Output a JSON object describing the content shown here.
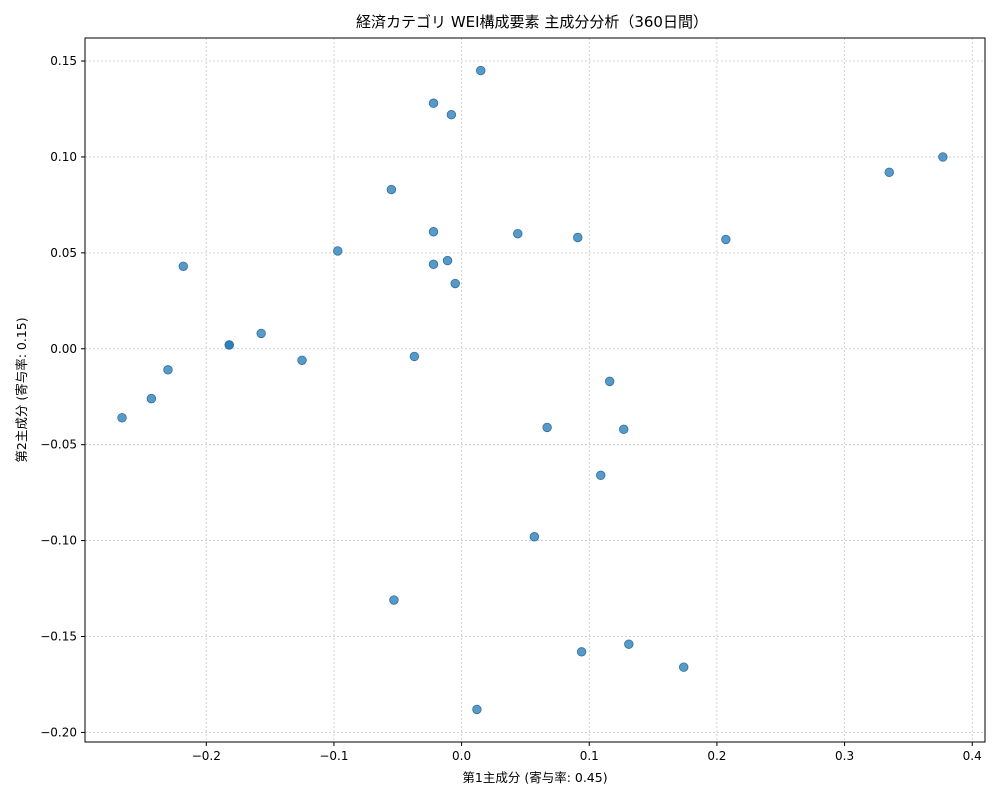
{
  "chart_data": {
    "type": "scatter",
    "title": "経済カテゴリ WEI構成要素 主成分分析（360日間）",
    "xlabel": "第1主成分 (寄与率: 0.45)",
    "ylabel": "第2主成分 (寄与率: 0.15)",
    "xlim": [
      -0.295,
      0.41
    ],
    "ylim": [
      -0.205,
      0.162
    ],
    "xticks": [
      -0.2,
      -0.1,
      0.0,
      0.1,
      0.2,
      0.3,
      0.4
    ],
    "xtick_labels": [
      "−0.2",
      "−0.1",
      "0.0",
      "0.1",
      "0.2",
      "0.3",
      "0.4"
    ],
    "yticks": [
      -0.2,
      -0.15,
      -0.1,
      -0.05,
      0.0,
      0.05,
      0.1,
      0.15
    ],
    "ytick_labels": [
      "−0.20",
      "−0.15",
      "−0.10",
      "−0.05",
      "0.00",
      "0.05",
      "0.10",
      "0.15"
    ],
    "grid": true,
    "point_color": "#1f77b4",
    "points": [
      {
        "x": 0.015,
        "y": 0.145
      },
      {
        "x": -0.022,
        "y": 0.128
      },
      {
        "x": -0.008,
        "y": 0.122
      },
      {
        "x": -0.055,
        "y": 0.083
      },
      {
        "x": -0.022,
        "y": 0.061
      },
      {
        "x": 0.044,
        "y": 0.06
      },
      {
        "x": 0.091,
        "y": 0.058
      },
      {
        "x": 0.207,
        "y": 0.057
      },
      {
        "x": -0.097,
        "y": 0.051
      },
      {
        "x": -0.011,
        "y": 0.046
      },
      {
        "x": -0.022,
        "y": 0.044
      },
      {
        "x": -0.218,
        "y": 0.043
      },
      {
        "x": -0.005,
        "y": 0.034
      },
      {
        "x": 0.335,
        "y": 0.092
      },
      {
        "x": 0.377,
        "y": 0.1
      },
      {
        "x": -0.157,
        "y": 0.008
      },
      {
        "x": -0.182,
        "y": 0.002
      },
      {
        "x": -0.182,
        "y": 0.002
      },
      {
        "x": -0.125,
        "y": -0.006
      },
      {
        "x": -0.037,
        "y": -0.004
      },
      {
        "x": -0.23,
        "y": -0.011
      },
      {
        "x": 0.116,
        "y": -0.017
      },
      {
        "x": -0.243,
        "y": -0.026
      },
      {
        "x": -0.266,
        "y": -0.036
      },
      {
        "x": 0.067,
        "y": -0.041
      },
      {
        "x": 0.127,
        "y": -0.042
      },
      {
        "x": 0.109,
        "y": -0.066
      },
      {
        "x": 0.057,
        "y": -0.098
      },
      {
        "x": -0.053,
        "y": -0.131
      },
      {
        "x": 0.131,
        "y": -0.154
      },
      {
        "x": 0.094,
        "y": -0.158
      },
      {
        "x": 0.174,
        "y": -0.166
      },
      {
        "x": 0.012,
        "y": -0.188
      }
    ]
  }
}
